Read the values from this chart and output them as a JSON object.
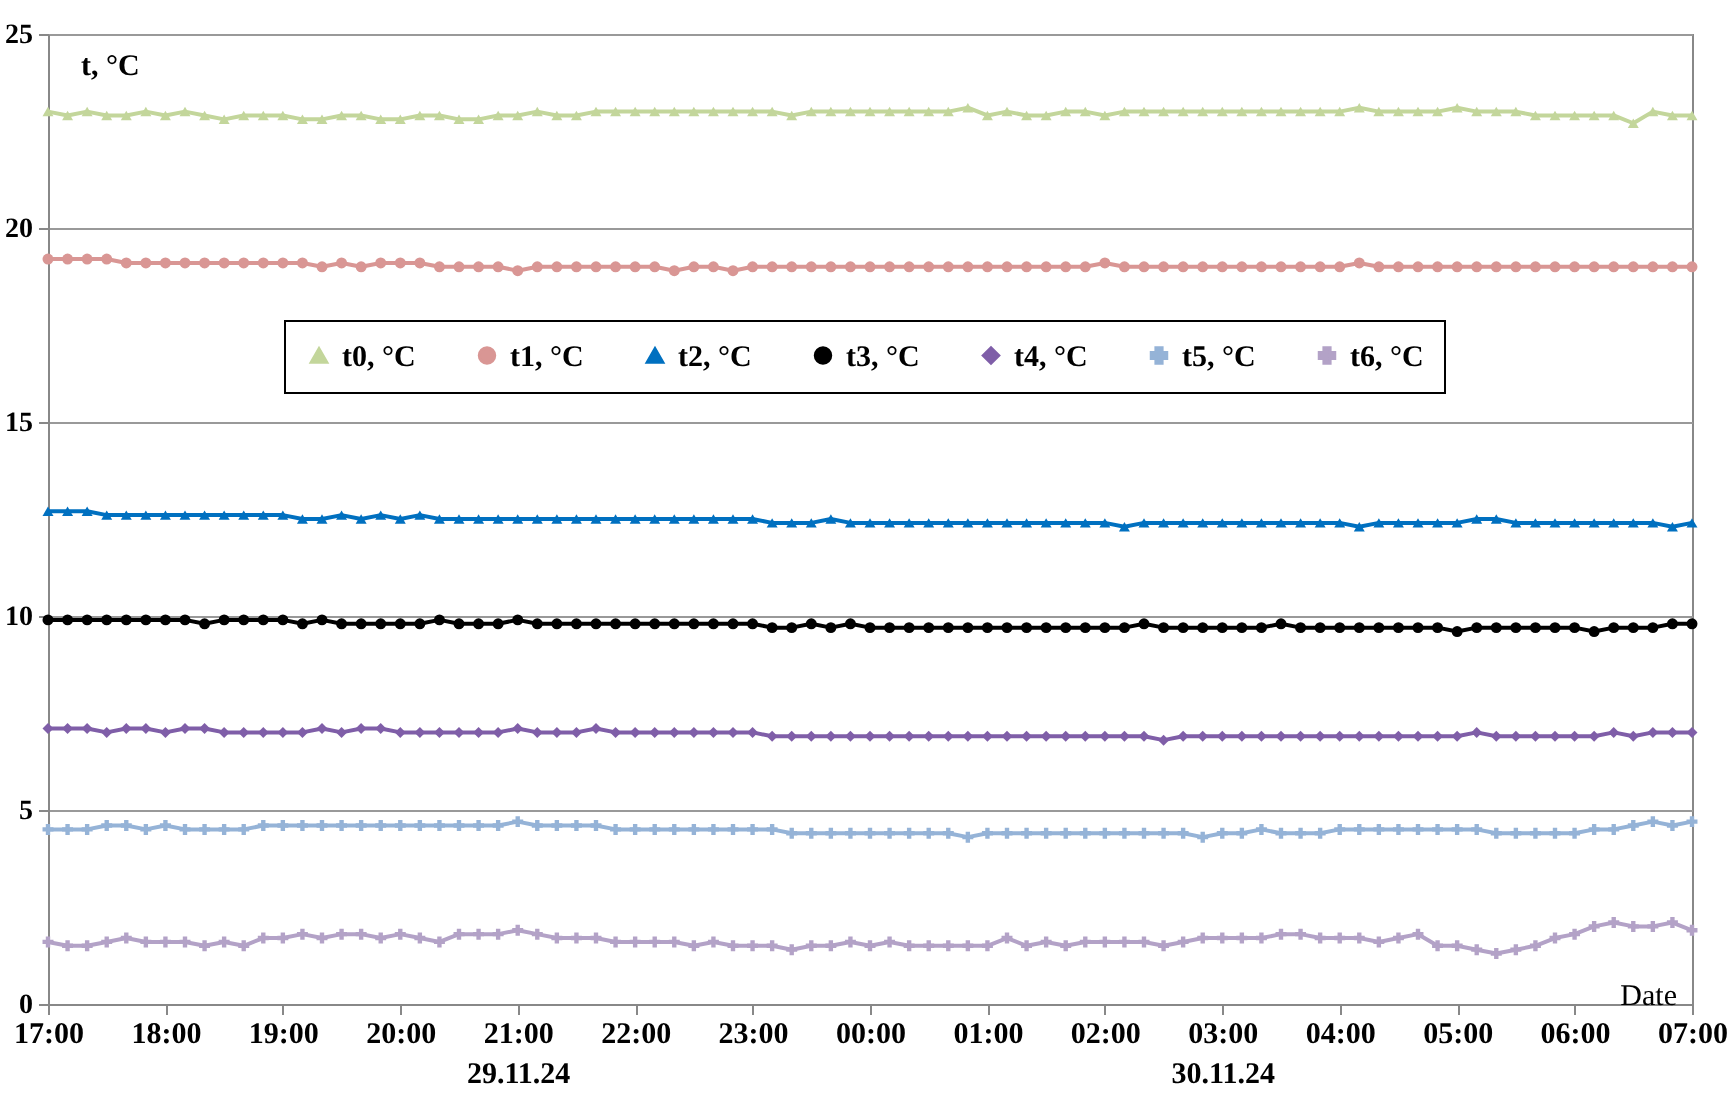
{
  "chart_data": {
    "type": "line",
    "xlabel": "Date",
    "ylabel": "t, °C",
    "ylim": [
      0,
      25
    ],
    "yticks": [
      0,
      5,
      10,
      15,
      20,
      25
    ],
    "xlim": [
      "--11-29T17:00",
      "--11-30T07:00"
    ],
    "xticks": [
      {
        "value": "--11-29T17:00",
        "label": "17:00"
      },
      {
        "value": "--11-29T18:00",
        "label": "18:00"
      },
      {
        "value": "--11-29T19:00",
        "label": "19:00"
      },
      {
        "value": "--11-29T20:00",
        "label": "20:00"
      },
      {
        "value": "--11-29T21:00",
        "label": "21:00\n29.11.24"
      },
      {
        "value": "--11-29T22:00",
        "label": "22:00"
      },
      {
        "value": "--11-29T23:00",
        "label": "23:00"
      },
      {
        "value": "--11-30T00:00",
        "label": "00:00"
      },
      {
        "value": "--11-30T01:00",
        "label": "01:00"
      },
      {
        "value": "--11-30T02:00",
        "label": "02:00"
      },
      {
        "value": "--11-30T03:00",
        "label": "03:00\n30.11.24"
      },
      {
        "value": "--11-30T04:00",
        "label": "04:00"
      },
      {
        "value": "--11-30T05:00",
        "label": "05:00"
      },
      {
        "value": "--11-30T06:00",
        "label": "06:00"
      },
      {
        "value": "--11-30T07:00",
        "label": "07:00"
      }
    ],
    "x": [
      "--11-29T17:00",
      "--11-29T17:10",
      "--11-29T17:20",
      "--11-29T17:30",
      "--11-29T17:40",
      "--11-29T17:50",
      "--11-29T18:00",
      "--11-29T18:10",
      "--11-29T18:20",
      "--11-29T18:30",
      "--11-29T18:40",
      "--11-29T18:50",
      "--11-29T19:00",
      "--11-29T19:10",
      "--11-29T19:20",
      "--11-29T19:30",
      "--11-29T19:40",
      "--11-29T19:50",
      "--11-29T20:00",
      "--11-29T20:10",
      "--11-29T20:20",
      "--11-29T20:30",
      "--11-29T20:40",
      "--11-29T20:50",
      "--11-29T21:00",
      "--11-29T21:10",
      "--11-29T21:20",
      "--11-29T21:30",
      "--11-29T21:40",
      "--11-29T21:50",
      "--11-29T22:00",
      "--11-29T22:10",
      "--11-29T22:20",
      "--11-29T22:30",
      "--11-29T22:40",
      "--11-29T22:50",
      "--11-29T23:00",
      "--11-29T23:10",
      "--11-29T23:20",
      "--11-29T23:30",
      "--11-29T23:40",
      "--11-29T23:50",
      "--11-30T00:00",
      "--11-30T00:10",
      "--11-30T00:20",
      "--11-30T00:30",
      "--11-30T00:40",
      "--11-30T00:50",
      "--11-30T01:00",
      "--11-30T01:10",
      "--11-30T01:20",
      "--11-30T01:30",
      "--11-30T01:40",
      "--11-30T01:50",
      "--11-30T02:00",
      "--11-30T02:10",
      "--11-30T02:20",
      "--11-30T02:30",
      "--11-30T02:40",
      "--11-30T02:50",
      "--11-30T03:00",
      "--11-30T03:10",
      "--11-30T03:20",
      "--11-30T03:30",
      "--11-30T03:40",
      "--11-30T03:50",
      "--11-30T04:00",
      "--11-30T04:10",
      "--11-30T04:20",
      "--11-30T04:30",
      "--11-30T04:40",
      "--11-30T04:50",
      "--11-30T05:00",
      "--11-30T05:10",
      "--11-30T05:20",
      "--11-30T05:30",
      "--11-30T05:40",
      "--11-30T05:50",
      "--11-30T06:00",
      "--11-30T06:10",
      "--11-30T06:20",
      "--11-30T06:30",
      "--11-30T06:40",
      "--11-30T06:50",
      "--11-30T07:00"
    ],
    "grid": "y",
    "legend": "top",
    "series": [
      {
        "name": "t0, °C",
        "color": "#c3d69b",
        "marker": "triangle",
        "values": [
          23.0,
          22.9,
          23.0,
          22.9,
          22.9,
          23.0,
          22.9,
          23.0,
          22.9,
          22.8,
          22.9,
          22.9,
          22.9,
          22.8,
          22.8,
          22.9,
          22.9,
          22.8,
          22.8,
          22.9,
          22.9,
          22.8,
          22.8,
          22.9,
          22.9,
          23.0,
          22.9,
          22.9,
          23.0,
          23.0,
          23.0,
          23.0,
          23.0,
          23.0,
          23.0,
          23.0,
          23.0,
          23.0,
          22.9,
          23.0,
          23.0,
          23.0,
          23.0,
          23.0,
          23.0,
          23.0,
          23.0,
          23.1,
          22.9,
          23.0,
          22.9,
          22.9,
          23.0,
          23.0,
          22.9,
          23.0,
          23.0,
          23.0,
          23.0,
          23.0,
          23.0,
          23.0,
          23.0,
          23.0,
          23.0,
          23.0,
          23.0,
          23.1,
          23.0,
          23.0,
          23.0,
          23.0,
          23.1,
          23.0,
          23.0,
          23.0,
          22.9,
          22.9,
          22.9,
          22.9,
          22.9,
          22.7,
          23.0,
          22.9,
          22.9
        ]
      },
      {
        "name": "t1, °C",
        "color": "#d99694",
        "marker": "circle",
        "values": [
          19.2,
          19.2,
          19.2,
          19.2,
          19.1,
          19.1,
          19.1,
          19.1,
          19.1,
          19.1,
          19.1,
          19.1,
          19.1,
          19.1,
          19.0,
          19.1,
          19.0,
          19.1,
          19.1,
          19.1,
          19.0,
          19.0,
          19.0,
          19.0,
          18.9,
          19.0,
          19.0,
          19.0,
          19.0,
          19.0,
          19.0,
          19.0,
          18.9,
          19.0,
          19.0,
          18.9,
          19.0,
          19.0,
          19.0,
          19.0,
          19.0,
          19.0,
          19.0,
          19.0,
          19.0,
          19.0,
          19.0,
          19.0,
          19.0,
          19.0,
          19.0,
          19.0,
          19.0,
          19.0,
          19.1,
          19.0,
          19.0,
          19.0,
          19.0,
          19.0,
          19.0,
          19.0,
          19.0,
          19.0,
          19.0,
          19.0,
          19.0,
          19.1,
          19.0,
          19.0,
          19.0,
          19.0,
          19.0,
          19.0,
          19.0,
          19.0,
          19.0,
          19.0,
          19.0,
          19.0,
          19.0,
          19.0,
          19.0,
          19.0,
          19.0
        ]
      },
      {
        "name": "t2, °C",
        "color": "#0070c0",
        "marker": "triangle",
        "values": [
          12.7,
          12.7,
          12.7,
          12.6,
          12.6,
          12.6,
          12.6,
          12.6,
          12.6,
          12.6,
          12.6,
          12.6,
          12.6,
          12.5,
          12.5,
          12.6,
          12.5,
          12.6,
          12.5,
          12.6,
          12.5,
          12.5,
          12.5,
          12.5,
          12.5,
          12.5,
          12.5,
          12.5,
          12.5,
          12.5,
          12.5,
          12.5,
          12.5,
          12.5,
          12.5,
          12.5,
          12.5,
          12.4,
          12.4,
          12.4,
          12.5,
          12.4,
          12.4,
          12.4,
          12.4,
          12.4,
          12.4,
          12.4,
          12.4,
          12.4,
          12.4,
          12.4,
          12.4,
          12.4,
          12.4,
          12.3,
          12.4,
          12.4,
          12.4,
          12.4,
          12.4,
          12.4,
          12.4,
          12.4,
          12.4,
          12.4,
          12.4,
          12.3,
          12.4,
          12.4,
          12.4,
          12.4,
          12.4,
          12.5,
          12.5,
          12.4,
          12.4,
          12.4,
          12.4,
          12.4,
          12.4,
          12.4,
          12.4,
          12.3,
          12.4
        ]
      },
      {
        "name": "t3, °C",
        "color": "#000000",
        "marker": "circle",
        "values": [
          9.9,
          9.9,
          9.9,
          9.9,
          9.9,
          9.9,
          9.9,
          9.9,
          9.8,
          9.9,
          9.9,
          9.9,
          9.9,
          9.8,
          9.9,
          9.8,
          9.8,
          9.8,
          9.8,
          9.8,
          9.9,
          9.8,
          9.8,
          9.8,
          9.9,
          9.8,
          9.8,
          9.8,
          9.8,
          9.8,
          9.8,
          9.8,
          9.8,
          9.8,
          9.8,
          9.8,
          9.8,
          9.7,
          9.7,
          9.8,
          9.7,
          9.8,
          9.7,
          9.7,
          9.7,
          9.7,
          9.7,
          9.7,
          9.7,
          9.7,
          9.7,
          9.7,
          9.7,
          9.7,
          9.7,
          9.7,
          9.8,
          9.7,
          9.7,
          9.7,
          9.7,
          9.7,
          9.7,
          9.8,
          9.7,
          9.7,
          9.7,
          9.7,
          9.7,
          9.7,
          9.7,
          9.7,
          9.6,
          9.7,
          9.7,
          9.7,
          9.7,
          9.7,
          9.7,
          9.6,
          9.7,
          9.7,
          9.7,
          9.8,
          9.8
        ]
      },
      {
        "name": "t4, °C",
        "color": "#7f5ea8",
        "marker": "diamond",
        "values": [
          7.1,
          7.1,
          7.1,
          7.0,
          7.1,
          7.1,
          7.0,
          7.1,
          7.1,
          7.0,
          7.0,
          7.0,
          7.0,
          7.0,
          7.1,
          7.0,
          7.1,
          7.1,
          7.0,
          7.0,
          7.0,
          7.0,
          7.0,
          7.0,
          7.1,
          7.0,
          7.0,
          7.0,
          7.1,
          7.0,
          7.0,
          7.0,
          7.0,
          7.0,
          7.0,
          7.0,
          7.0,
          6.9,
          6.9,
          6.9,
          6.9,
          6.9,
          6.9,
          6.9,
          6.9,
          6.9,
          6.9,
          6.9,
          6.9,
          6.9,
          6.9,
          6.9,
          6.9,
          6.9,
          6.9,
          6.9,
          6.9,
          6.8,
          6.9,
          6.9,
          6.9,
          6.9,
          6.9,
          6.9,
          6.9,
          6.9,
          6.9,
          6.9,
          6.9,
          6.9,
          6.9,
          6.9,
          6.9,
          7.0,
          6.9,
          6.9,
          6.9,
          6.9,
          6.9,
          6.9,
          7.0,
          6.9,
          7.0,
          7.0,
          7.0
        ]
      },
      {
        "name": "t5, °C",
        "color": "#95b3d7",
        "marker": "cross",
        "values": [
          4.5,
          4.5,
          4.5,
          4.6,
          4.6,
          4.5,
          4.6,
          4.5,
          4.5,
          4.5,
          4.5,
          4.6,
          4.6,
          4.6,
          4.6,
          4.6,
          4.6,
          4.6,
          4.6,
          4.6,
          4.6,
          4.6,
          4.6,
          4.6,
          4.7,
          4.6,
          4.6,
          4.6,
          4.6,
          4.5,
          4.5,
          4.5,
          4.5,
          4.5,
          4.5,
          4.5,
          4.5,
          4.5,
          4.4,
          4.4,
          4.4,
          4.4,
          4.4,
          4.4,
          4.4,
          4.4,
          4.4,
          4.3,
          4.4,
          4.4,
          4.4,
          4.4,
          4.4,
          4.4,
          4.4,
          4.4,
          4.4,
          4.4,
          4.4,
          4.3,
          4.4,
          4.4,
          4.5,
          4.4,
          4.4,
          4.4,
          4.5,
          4.5,
          4.5,
          4.5,
          4.5,
          4.5,
          4.5,
          4.5,
          4.4,
          4.4,
          4.4,
          4.4,
          4.4,
          4.5,
          4.5,
          4.6,
          4.7,
          4.6,
          4.7
        ]
      },
      {
        "name": "t6, °C",
        "color": "#b3a2c7",
        "marker": "cross",
        "values": [
          1.6,
          1.5,
          1.5,
          1.6,
          1.7,
          1.6,
          1.6,
          1.6,
          1.5,
          1.6,
          1.5,
          1.7,
          1.7,
          1.8,
          1.7,
          1.8,
          1.8,
          1.7,
          1.8,
          1.7,
          1.6,
          1.8,
          1.8,
          1.8,
          1.9,
          1.8,
          1.7,
          1.7,
          1.7,
          1.6,
          1.6,
          1.6,
          1.6,
          1.5,
          1.6,
          1.5,
          1.5,
          1.5,
          1.4,
          1.5,
          1.5,
          1.6,
          1.5,
          1.6,
          1.5,
          1.5,
          1.5,
          1.5,
          1.5,
          1.7,
          1.5,
          1.6,
          1.5,
          1.6,
          1.6,
          1.6,
          1.6,
          1.5,
          1.6,
          1.7,
          1.7,
          1.7,
          1.7,
          1.8,
          1.8,
          1.7,
          1.7,
          1.7,
          1.6,
          1.7,
          1.8,
          1.5,
          1.5,
          1.4,
          1.3,
          1.4,
          1.5,
          1.7,
          1.8,
          2.0,
          2.1,
          2.0,
          2.0,
          2.1,
          1.9
        ]
      }
    ]
  }
}
